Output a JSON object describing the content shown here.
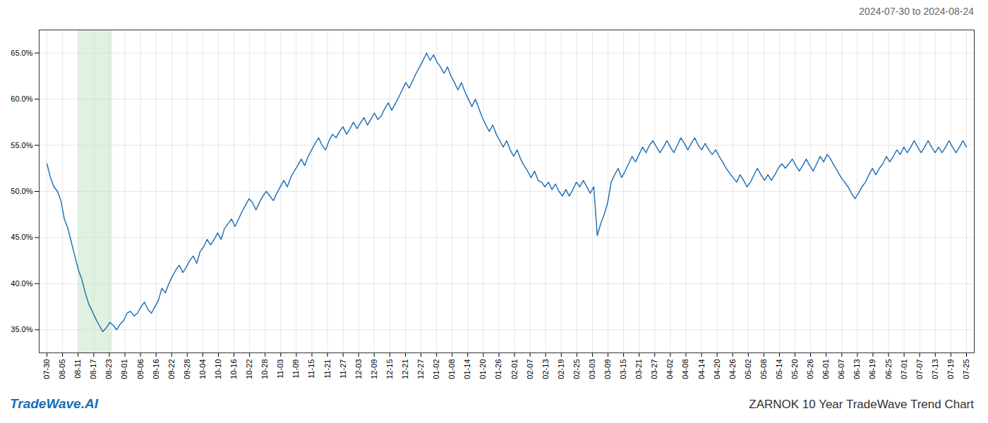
{
  "chart_data": {
    "type": "line",
    "title": "ZARNOK 10 Year TradeWave Trend Chart",
    "subtitle": "2024-07-30 to 2024-08-24",
    "annotation": "TradeWave.AI",
    "color": "#1a6cb5",
    "grid": true,
    "shade": {
      "xlim": [
        2.0,
        4.2
      ],
      "color": "#c8e6c9"
    },
    "xlim": [
      -0.5,
      59.5
    ],
    "xticks": [
      {
        "value": 0,
        "label": "07-30"
      },
      {
        "value": 1,
        "label": "08-05"
      },
      {
        "value": 2,
        "label": "08-11"
      },
      {
        "value": 3,
        "label": "08-17"
      },
      {
        "value": 4,
        "label": "08-23"
      },
      {
        "value": 5,
        "label": "09-01"
      },
      {
        "value": 6,
        "label": "09-06"
      },
      {
        "value": 7,
        "label": "09-16"
      },
      {
        "value": 8,
        "label": "09-22"
      },
      {
        "value": 9,
        "label": "09-28"
      },
      {
        "value": 10,
        "label": "10-04"
      },
      {
        "value": 11,
        "label": "10-10"
      },
      {
        "value": 12,
        "label": "10-16"
      },
      {
        "value": 13,
        "label": "10-22"
      },
      {
        "value": 14,
        "label": "10-28"
      },
      {
        "value": 15,
        "label": "11-03"
      },
      {
        "value": 16,
        "label": "11-09"
      },
      {
        "value": 17,
        "label": "11-15"
      },
      {
        "value": 18,
        "label": "11-21"
      },
      {
        "value": 19,
        "label": "11-27"
      },
      {
        "value": 20,
        "label": "12-03"
      },
      {
        "value": 21,
        "label": "12-09"
      },
      {
        "value": 22,
        "label": "12-15"
      },
      {
        "value": 23,
        "label": "12-21"
      },
      {
        "value": 24,
        "label": "12-27"
      },
      {
        "value": 25,
        "label": "01-02"
      },
      {
        "value": 26,
        "label": "01-08"
      },
      {
        "value": 27,
        "label": "01-14"
      },
      {
        "value": 28,
        "label": "01-20"
      },
      {
        "value": 29,
        "label": "01-26"
      },
      {
        "value": 30,
        "label": "02-01"
      },
      {
        "value": 31,
        "label": "02-07"
      },
      {
        "value": 32,
        "label": "02-13"
      },
      {
        "value": 33,
        "label": "02-19"
      },
      {
        "value": 34,
        "label": "02-25"
      },
      {
        "value": 35,
        "label": "03-03"
      },
      {
        "value": 36,
        "label": "03-09"
      },
      {
        "value": 37,
        "label": "03-15"
      },
      {
        "value": 38,
        "label": "03-21"
      },
      {
        "value": 39,
        "label": "03-27"
      },
      {
        "value": 40,
        "label": "04-02"
      },
      {
        "value": 41,
        "label": "04-08"
      },
      {
        "value": 42,
        "label": "04-14"
      },
      {
        "value": 43,
        "label": "04-20"
      },
      {
        "value": 44,
        "label": "04-26"
      },
      {
        "value": 45,
        "label": "05-02"
      },
      {
        "value": 46,
        "label": "05-08"
      },
      {
        "value": 47,
        "label": "05-14"
      },
      {
        "value": 48,
        "label": "05-20"
      },
      {
        "value": 49,
        "label": "05-26"
      },
      {
        "value": 50,
        "label": "06-01"
      },
      {
        "value": 51,
        "label": "06-07"
      },
      {
        "value": 52,
        "label": "06-13"
      },
      {
        "value": 53,
        "label": "06-19"
      },
      {
        "value": 54,
        "label": "06-25"
      },
      {
        "value": 55,
        "label": "07-01"
      },
      {
        "value": 56,
        "label": "07-07"
      },
      {
        "value": 57,
        "label": "07-13"
      },
      {
        "value": 58,
        "label": "07-19"
      },
      {
        "value": 59,
        "label": "07-25"
      }
    ],
    "ylim": [
      0.325,
      0.675
    ],
    "yticks": [
      {
        "value": 0.35,
        "label": "35.0%"
      },
      {
        "value": 0.4,
        "label": "40.0%"
      },
      {
        "value": 0.45,
        "label": "45.0%"
      },
      {
        "value": 0.5,
        "label": "50.0%"
      },
      {
        "value": 0.55,
        "label": "55.0%"
      },
      {
        "value": 0.6,
        "label": "60.0%"
      },
      {
        "value": 0.65,
        "label": "65.0%"
      }
    ],
    "values": [
      0.53,
      0.515,
      0.505,
      0.5,
      0.49,
      0.47,
      0.46,
      0.445,
      0.43,
      0.415,
      0.405,
      0.39,
      0.378,
      0.37,
      0.362,
      0.355,
      0.348,
      0.352,
      0.358,
      0.355,
      0.35,
      0.356,
      0.36,
      0.368,
      0.37,
      0.365,
      0.368,
      0.375,
      0.38,
      0.372,
      0.368,
      0.375,
      0.382,
      0.395,
      0.39,
      0.4,
      0.408,
      0.415,
      0.42,
      0.412,
      0.418,
      0.425,
      0.43,
      0.422,
      0.435,
      0.44,
      0.448,
      0.442,
      0.448,
      0.455,
      0.448,
      0.46,
      0.465,
      0.47,
      0.462,
      0.47,
      0.478,
      0.485,
      0.492,
      0.488,
      0.48,
      0.488,
      0.495,
      0.5,
      0.495,
      0.49,
      0.498,
      0.505,
      0.512,
      0.505,
      0.515,
      0.522,
      0.528,
      0.535,
      0.528,
      0.538,
      0.545,
      0.552,
      0.558,
      0.55,
      0.545,
      0.555,
      0.562,
      0.558,
      0.565,
      0.57,
      0.562,
      0.568,
      0.575,
      0.568,
      0.574,
      0.58,
      0.572,
      0.578,
      0.585,
      0.578,
      0.582,
      0.59,
      0.596,
      0.588,
      0.595,
      0.602,
      0.61,
      0.618,
      0.612,
      0.62,
      0.628,
      0.635,
      0.642,
      0.65,
      0.642,
      0.648,
      0.64,
      0.635,
      0.628,
      0.635,
      0.625,
      0.618,
      0.61,
      0.618,
      0.608,
      0.6,
      0.592,
      0.6,
      0.59,
      0.58,
      0.572,
      0.565,
      0.572,
      0.562,
      0.555,
      0.548,
      0.555,
      0.545,
      0.538,
      0.545,
      0.535,
      0.528,
      0.522,
      0.515,
      0.522,
      0.512,
      0.51,
      0.505,
      0.51,
      0.502,
      0.508,
      0.5,
      0.495,
      0.502,
      0.495,
      0.502,
      0.51,
      0.505,
      0.512,
      0.505,
      0.498,
      0.505,
      0.452,
      0.465,
      0.475,
      0.488,
      0.51,
      0.518,
      0.525,
      0.515,
      0.522,
      0.53,
      0.538,
      0.532,
      0.54,
      0.548,
      0.542,
      0.55,
      0.555,
      0.548,
      0.542,
      0.548,
      0.555,
      0.548,
      0.542,
      0.55,
      0.558,
      0.552,
      0.545,
      0.552,
      0.558,
      0.55,
      0.545,
      0.552,
      0.545,
      0.54,
      0.545,
      0.538,
      0.532,
      0.525,
      0.52,
      0.515,
      0.51,
      0.518,
      0.512,
      0.505,
      0.51,
      0.518,
      0.525,
      0.518,
      0.512,
      0.518,
      0.512,
      0.518,
      0.525,
      0.53,
      0.525,
      0.53,
      0.535,
      0.528,
      0.522,
      0.528,
      0.535,
      0.528,
      0.522,
      0.53,
      0.538,
      0.532,
      0.54,
      0.535,
      0.528,
      0.522,
      0.515,
      0.51,
      0.505,
      0.498,
      0.492,
      0.498,
      0.505,
      0.51,
      0.518,
      0.525,
      0.518,
      0.525,
      0.53,
      0.538,
      0.532,
      0.538,
      0.545,
      0.54,
      0.548,
      0.542,
      0.548,
      0.555,
      0.548,
      0.542,
      0.548,
      0.555,
      0.548,
      0.542,
      0.548,
      0.542,
      0.548,
      0.555,
      0.548,
      0.542,
      0.548,
      0.555,
      0.548
    ]
  }
}
